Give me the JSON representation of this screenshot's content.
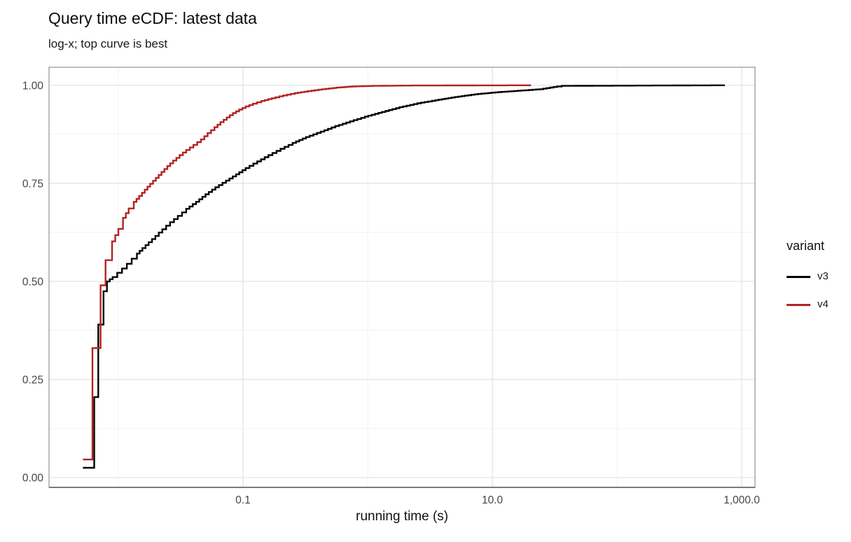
{
  "chart_data": {
    "type": "line",
    "subtype": "ecdf-step",
    "title": "Query time eCDF: latest data",
    "subtitle": "log-x; top curve is best",
    "xlabel": "running time (s)",
    "ylabel": "",
    "x_scale": "log10",
    "xlim_log10": [
      -2.556,
      3.107
    ],
    "ylim": [
      -0.025,
      1.046
    ],
    "grid": true,
    "x_ticks": [
      {
        "value": 0.1,
        "label": "0.1"
      },
      {
        "value": 10,
        "label": "10.0"
      },
      {
        "value": 1000,
        "label": "1,000.0"
      }
    ],
    "x_minor": [
      0.01,
      1,
      100
    ],
    "y_ticks": [
      {
        "value": 0,
        "label": "0.00"
      },
      {
        "value": 0.25,
        "label": "0.25"
      },
      {
        "value": 0.5,
        "label": "0.50"
      },
      {
        "value": 0.75,
        "label": "0.75"
      },
      {
        "value": 1,
        "label": "1.00"
      }
    ],
    "y_minor": [
      0.125,
      0.375,
      0.625,
      0.875
    ],
    "legend": {
      "title": "variant",
      "position": "right",
      "items": [
        {
          "label": "v3",
          "color": "#000000"
        },
        {
          "label": "v4",
          "color": "#B22222"
        }
      ]
    },
    "series": [
      {
        "name": "v3",
        "color": "#000000",
        "points": [
          [
            0.0052,
            0.025
          ],
          [
            0.0064,
            0.205
          ],
          [
            0.0069,
            0.39
          ],
          [
            0.0076,
            0.475
          ],
          [
            0.0081,
            0.5
          ],
          [
            0.009,
            0.511
          ],
          [
            0.0098,
            0.522
          ],
          [
            0.0107,
            0.533
          ],
          [
            0.0117,
            0.545
          ],
          [
            0.0128,
            0.558
          ],
          [
            0.0141,
            0.571
          ],
          [
            0.0156,
            0.585
          ],
          [
            0.0175,
            0.6
          ],
          [
            0.0198,
            0.616
          ],
          [
            0.0225,
            0.633
          ],
          [
            0.026,
            0.651
          ],
          [
            0.03,
            0.667
          ],
          [
            0.035,
            0.685
          ],
          [
            0.042,
            0.703
          ],
          [
            0.05,
            0.722
          ],
          [
            0.06,
            0.74
          ],
          [
            0.073,
            0.757
          ],
          [
            0.088,
            0.773
          ],
          [
            0.105,
            0.789
          ],
          [
            0.13,
            0.806
          ],
          [
            0.16,
            0.822
          ],
          [
            0.2,
            0.838
          ],
          [
            0.25,
            0.853
          ],
          [
            0.32,
            0.868
          ],
          [
            0.42,
            0.882
          ],
          [
            0.55,
            0.896
          ],
          [
            0.72,
            0.908
          ],
          [
            0.95,
            0.92
          ],
          [
            1.3,
            0.932
          ],
          [
            1.8,
            0.944
          ],
          [
            2.5,
            0.954
          ],
          [
            3.5,
            0.962
          ],
          [
            5.0,
            0.97
          ],
          [
            7.2,
            0.977
          ],
          [
            10.5,
            0.982
          ],
          [
            16,
            0.986
          ],
          [
            24,
            0.99
          ],
          [
            33,
            0.997
          ],
          [
            36,
            0.9985
          ],
          [
            733,
            1.0
          ]
        ]
      },
      {
        "name": "v4",
        "color": "#B22222",
        "points": [
          [
            0.0052,
            0.046
          ],
          [
            0.0062,
            0.33
          ],
          [
            0.0072,
            0.49
          ],
          [
            0.0079,
            0.554
          ],
          [
            0.0089,
            0.602
          ],
          [
            0.01,
            0.634
          ],
          [
            0.0109,
            0.662
          ],
          [
            0.0121,
            0.686
          ],
          [
            0.0133,
            0.703
          ],
          [
            0.0147,
            0.718
          ],
          [
            0.0163,
            0.734
          ],
          [
            0.018,
            0.749
          ],
          [
            0.02,
            0.764
          ],
          [
            0.0222,
            0.779
          ],
          [
            0.0247,
            0.794
          ],
          [
            0.0275,
            0.808
          ],
          [
            0.031,
            0.822
          ],
          [
            0.035,
            0.835
          ],
          [
            0.04,
            0.848
          ],
          [
            0.046,
            0.862
          ],
          [
            0.052,
            0.878
          ],
          [
            0.059,
            0.893
          ],
          [
            0.066,
            0.906
          ],
          [
            0.074,
            0.918
          ],
          [
            0.083,
            0.929
          ],
          [
            0.093,
            0.938
          ],
          [
            0.105,
            0.946
          ],
          [
            0.12,
            0.953
          ],
          [
            0.14,
            0.96
          ],
          [
            0.17,
            0.967
          ],
          [
            0.21,
            0.974
          ],
          [
            0.26,
            0.98
          ],
          [
            0.33,
            0.985
          ],
          [
            0.43,
            0.99
          ],
          [
            0.56,
            0.994
          ],
          [
            0.75,
            0.997
          ],
          [
            1.1,
            0.9985
          ],
          [
            2.0,
            0.9993
          ],
          [
            20.4,
            1.0
          ]
        ]
      }
    ],
    "colors": {
      "grid_major": "#e4e4e4",
      "grid_minor": "#f1f1f1",
      "panel_border": "#9b9b9b",
      "axis_line": "#5a5a5a",
      "tick_text": "#464646"
    }
  }
}
